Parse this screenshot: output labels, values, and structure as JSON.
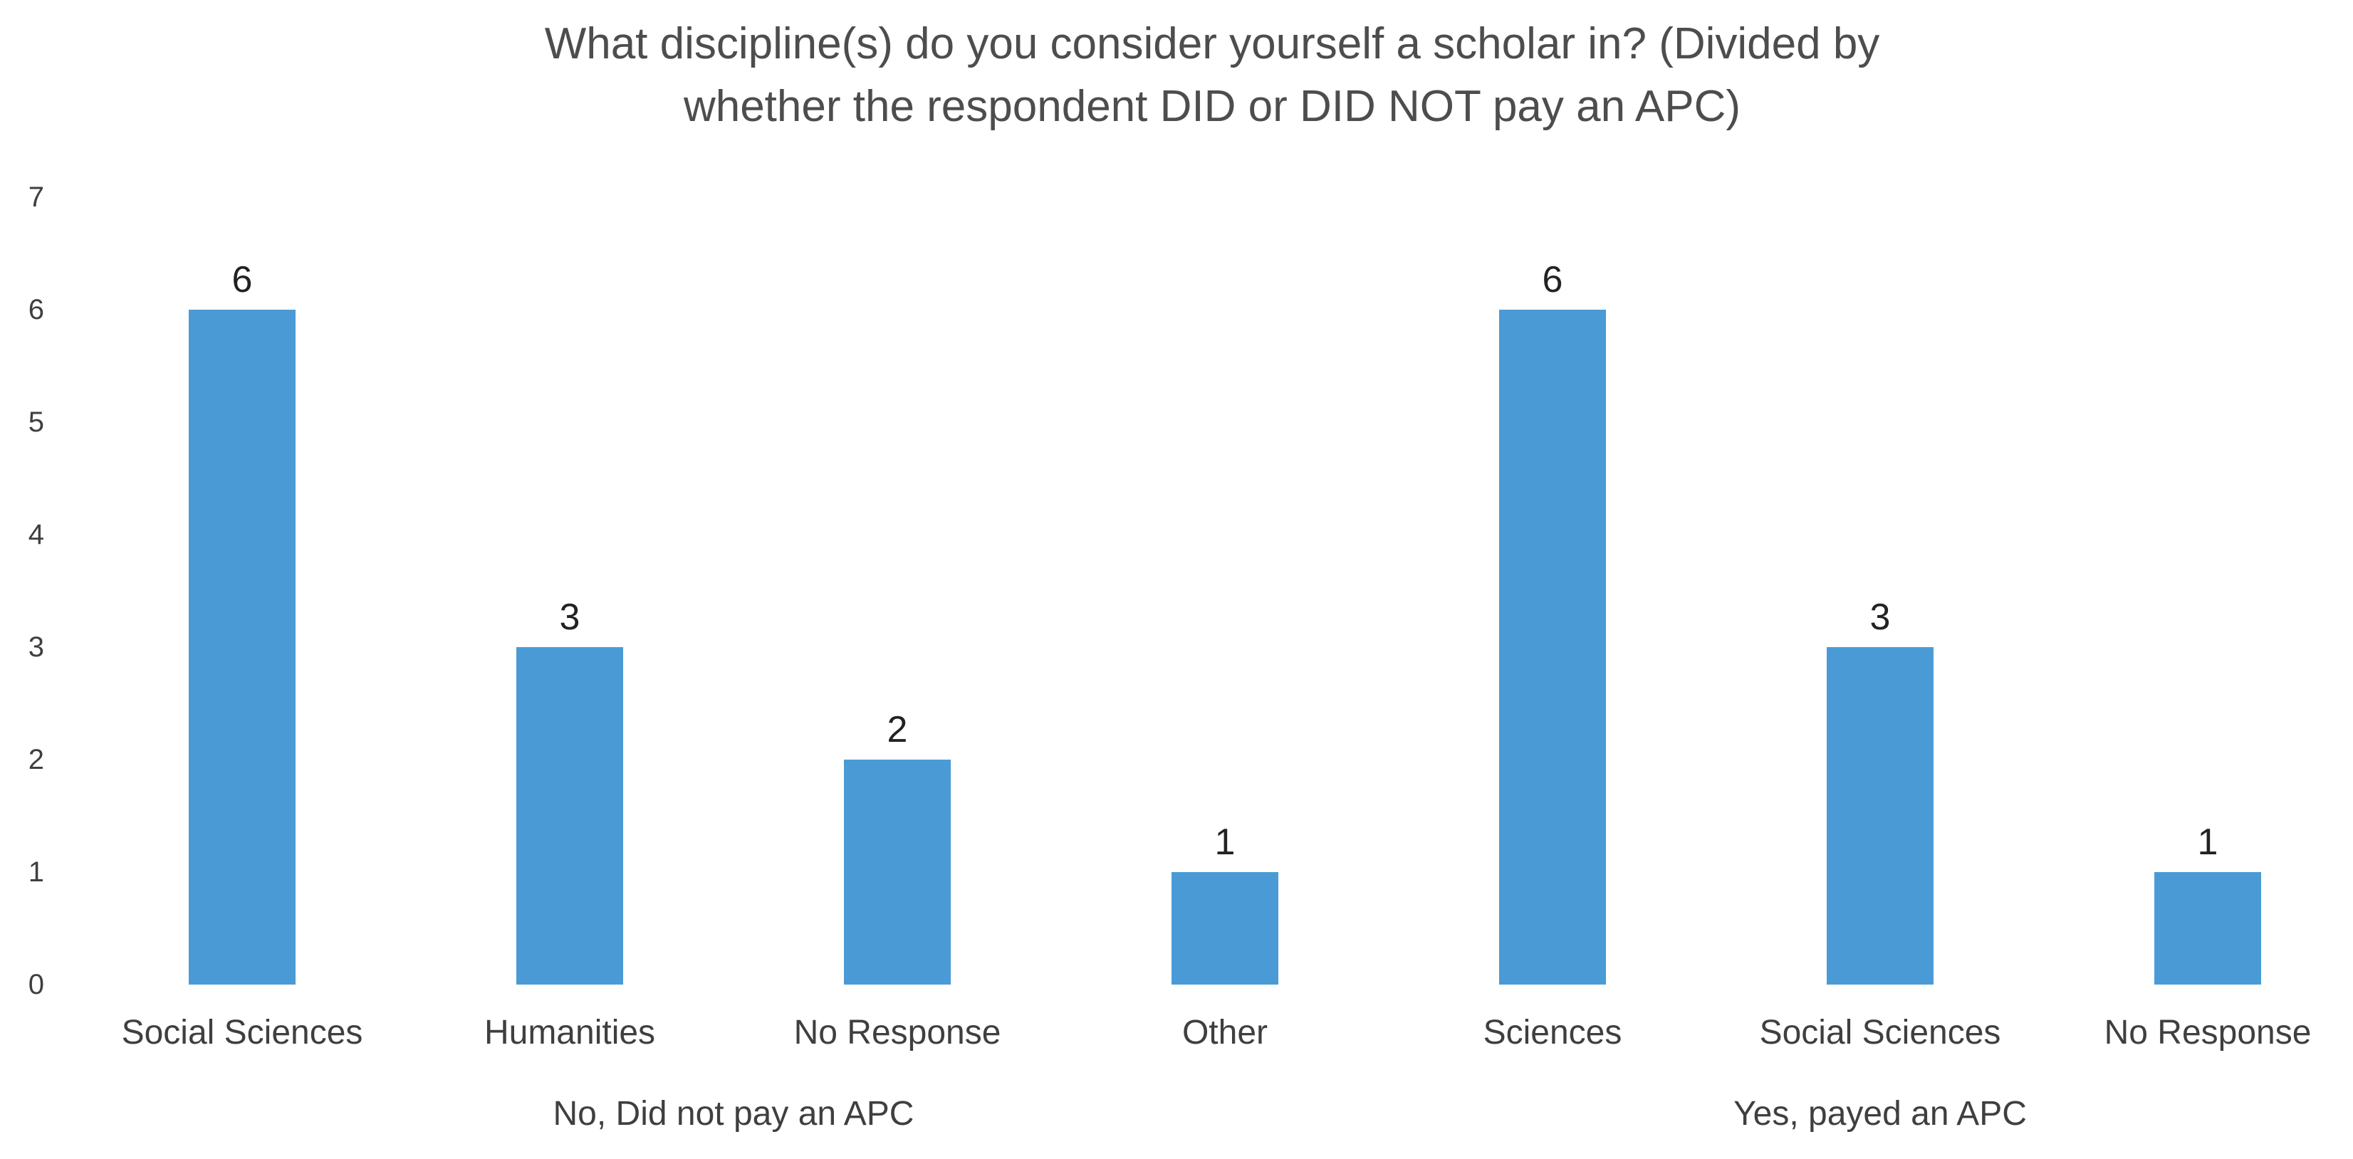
{
  "title_lines": [
    "What discipline(s) do you consider yourself a scholar in? (Divided by",
    "whether the respondent DID or DID NOT pay an APC)"
  ],
  "chart_data": {
    "type": "bar",
    "title": "What discipline(s) do you consider yourself a scholar in? (Divided by whether the respondent DID or DID NOT pay an APC)",
    "xlabel": "",
    "ylabel": "",
    "ylim": [
      0,
      7
    ],
    "yticks": [
      0,
      1,
      2,
      3,
      4,
      5,
      6,
      7
    ],
    "grid": false,
    "legend": false,
    "data_labels": true,
    "groups": [
      {
        "label": "No, Did not pay an APC",
        "categories": [
          "Social Sciences",
          "Humanities",
          "No Response",
          "Other"
        ],
        "values": [
          6,
          3,
          2,
          1
        ]
      },
      {
        "label": "Yes, payed an APC",
        "categories": [
          "Sciences",
          "Social Sciences",
          "No Response"
        ],
        "values": [
          6,
          3,
          1
        ]
      }
    ]
  },
  "colors": {
    "bar": "#4A9BD5",
    "title_text": "#4d4d4d",
    "axis_text": "#3f3f3f",
    "data_label_text": "#222222",
    "background": "#ffffff"
  }
}
